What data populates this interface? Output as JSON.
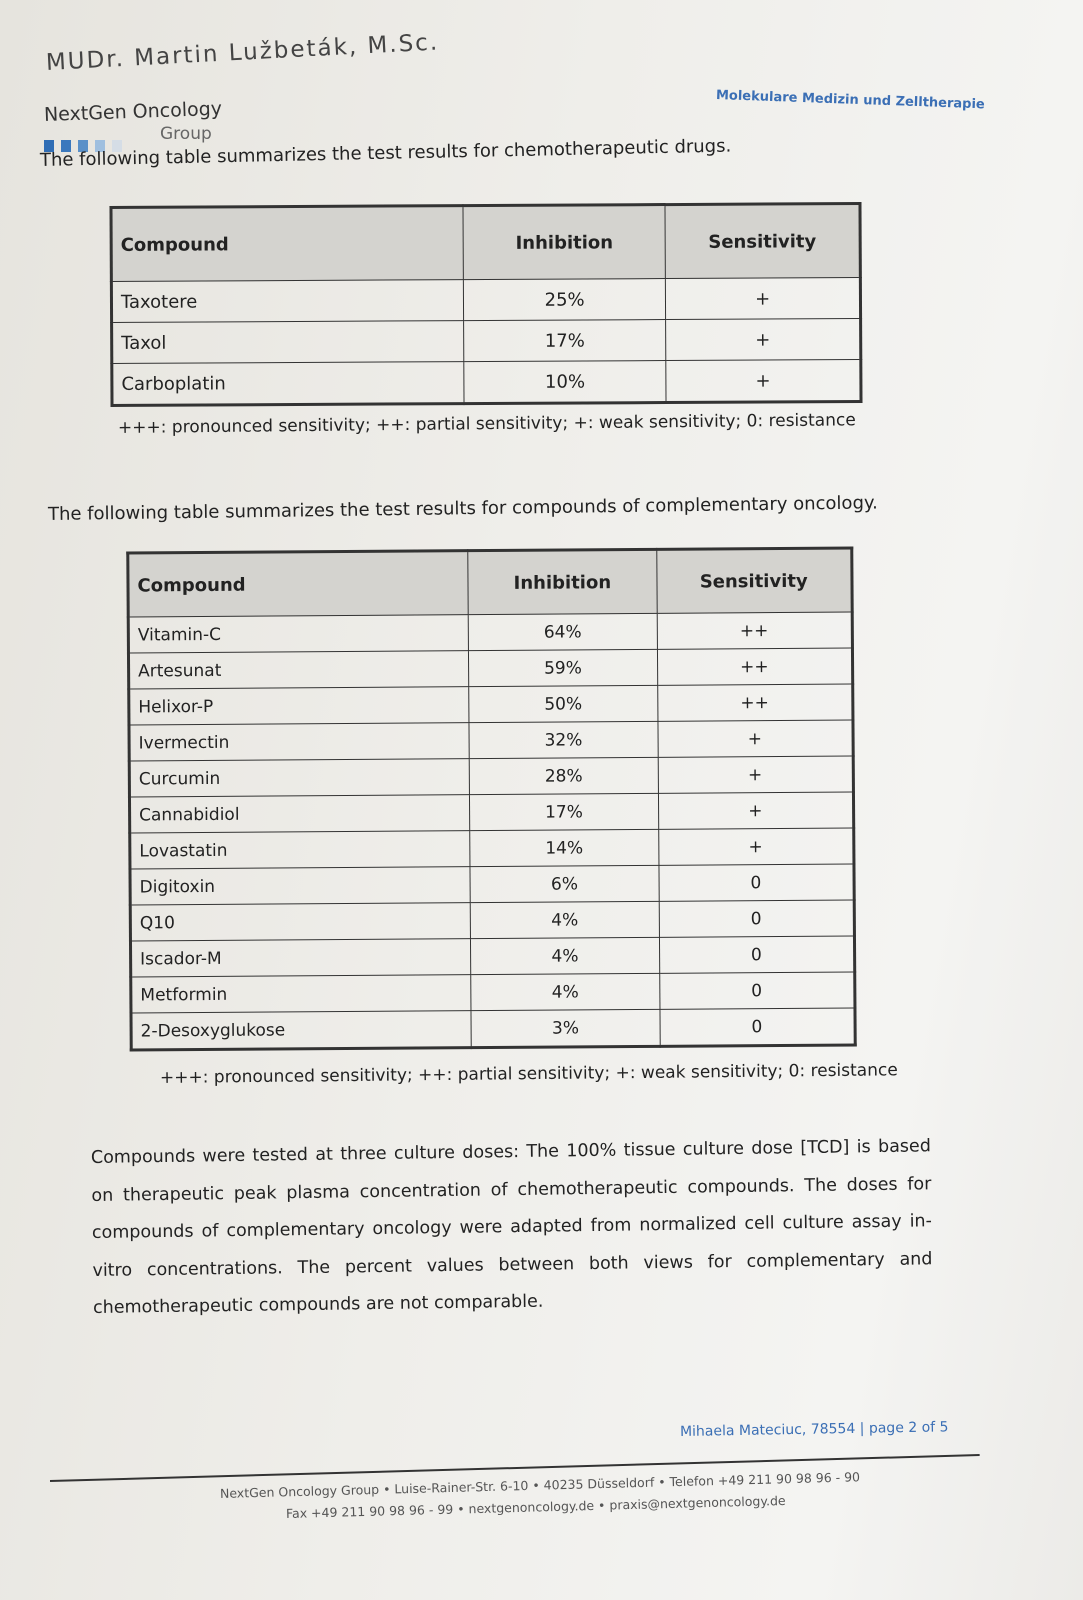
{
  "header": {
    "author": "MUDr. Martin Lužbeták, M.Sc.",
    "brand_name": "NextGen Oncology",
    "brand_sub": "Group",
    "tagline": "Molekulare Medizin und Zelltherapie",
    "accent_color": "#3b6fb5"
  },
  "chemo": {
    "intro": "The following table summarizes the test results for chemotherapeutic drugs.",
    "columns": [
      "Compound",
      "Inhibition",
      "Sensitivity"
    ],
    "rows": [
      [
        "Taxotere",
        "25%",
        "+"
      ],
      [
        "Taxol",
        "17%",
        "+"
      ],
      [
        "Carboplatin",
        "10%",
        "+"
      ]
    ],
    "legend": "+++: pronounced sensitivity; ++: partial sensitivity; +: weak sensitivity; 0: resistance"
  },
  "complementary": {
    "intro": "The following table summarizes the test results for compounds of complementary oncology.",
    "columns": [
      "Compound",
      "Inhibition",
      "Sensitivity"
    ],
    "rows": [
      [
        "Vitamin-C",
        "64%",
        "++"
      ],
      [
        "Artesunat",
        "59%",
        "++"
      ],
      [
        "Helixor-P",
        "50%",
        "++"
      ],
      [
        "Ivermectin",
        "32%",
        "+"
      ],
      [
        "Curcumin",
        "28%",
        "+"
      ],
      [
        "Cannabidiol",
        "17%",
        "+"
      ],
      [
        "Lovastatin",
        "14%",
        "+"
      ],
      [
        "Digitoxin",
        "6%",
        "0"
      ],
      [
        "Q10",
        "4%",
        "0"
      ],
      [
        "Iscador-M",
        "4%",
        "0"
      ],
      [
        "Metformin",
        "4%",
        "0"
      ],
      [
        "2-Desoxyglukose",
        "3%",
        "0"
      ]
    ],
    "legend": "+++: pronounced sensitivity; ++: partial sensitivity; +: weak sensitivity; 0: resistance"
  },
  "note": "Compounds were tested at three culture doses: The 100% tissue culture dose [TCD] is based on therapeutic peak plasma concentration of chemotherapeutic compounds. The doses for compounds of complementary oncology were adapted from normalized cell culture assay in-vitro concentrations. The percent values between both views for complementary and chemotherapeutic compounds are not comparable.",
  "footer": {
    "page_info": "Mihaela Mateciuc, 78554 | page 2 of 5",
    "address_line": "NextGen Oncology Group • Luise-Rainer-Str. 6-10 • 40235 Düsseldorf • Telefon +49 211 90 98 96 - 90",
    "contact_line": "Fax +49 211 90 98 96 - 99 • nextgenoncology.de • praxis@nextgenoncology.de"
  }
}
